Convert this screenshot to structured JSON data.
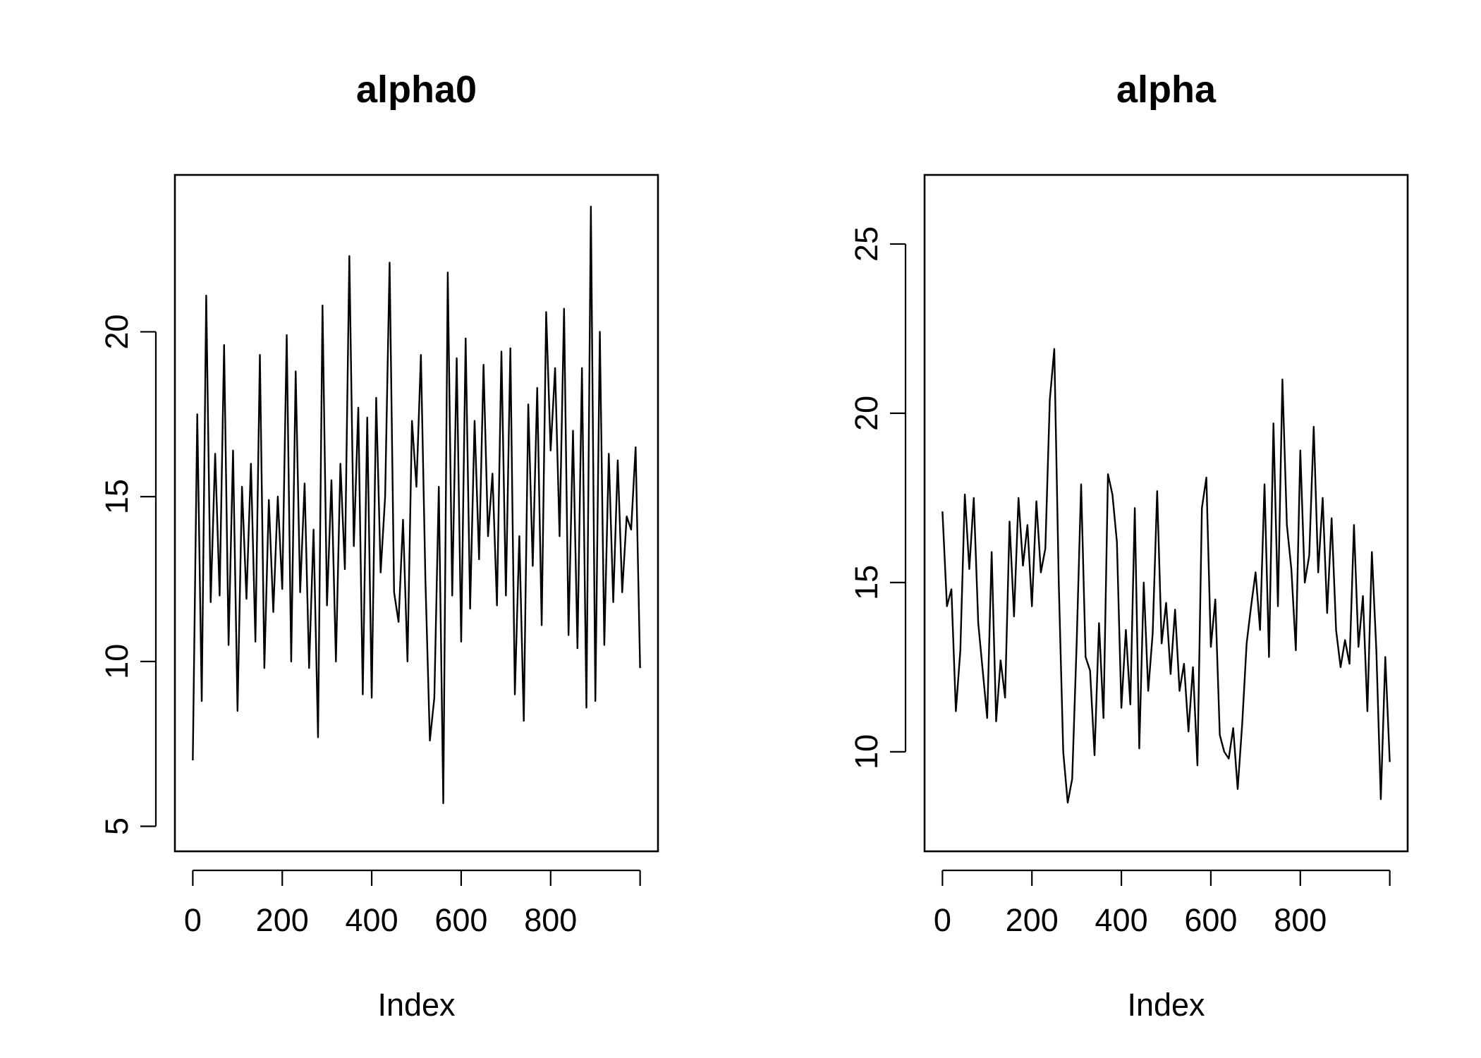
{
  "chart_data": [
    {
      "type": "line",
      "title": "alpha0",
      "xlabel": "Index",
      "ylabel": "",
      "xlim": [
        0,
        1000
      ],
      "ylim": [
        5,
        24
      ],
      "x_ticks": [
        0,
        200,
        400,
        600,
        800,
        1000
      ],
      "x_tick_labels": [
        "0",
        "200",
        "400",
        "600",
        "800",
        ""
      ],
      "y_ticks": [
        5,
        10,
        15,
        20
      ],
      "y_tick_labels": [
        "5",
        "10",
        "15",
        "20"
      ],
      "grid": false,
      "series": [
        {
          "x": [
            0,
            10,
            20,
            30,
            40,
            50,
            60,
            70,
            80,
            90,
            100,
            110,
            120,
            130,
            140,
            150,
            160,
            170,
            180,
            190,
            200,
            210,
            220,
            230,
            240,
            250,
            260,
            270,
            280,
            290,
            300,
            310,
            320,
            330,
            340,
            350,
            360,
            370,
            380,
            390,
            400,
            410,
            420,
            430,
            440,
            450,
            460,
            470,
            480,
            490,
            500,
            510,
            520,
            530,
            540,
            550,
            560,
            570,
            580,
            590,
            600,
            610,
            620,
            630,
            640,
            650,
            660,
            670,
            680,
            690,
            700,
            710,
            720,
            730,
            740,
            750,
            760,
            770,
            780,
            790,
            800,
            810,
            820,
            830,
            840,
            850,
            860,
            870,
            880,
            890,
            900,
            910,
            920,
            930,
            940,
            950,
            960,
            970,
            980,
            990,
            1000
          ],
          "values": [
            7.0,
            17.5,
            8.8,
            21.1,
            11.8,
            16.3,
            12.0,
            19.6,
            10.5,
            16.4,
            8.5,
            15.3,
            11.9,
            16.0,
            10.6,
            19.3,
            9.8,
            14.9,
            11.5,
            15.0,
            12.2,
            19.9,
            10.0,
            18.8,
            12.1,
            15.4,
            9.8,
            14.0,
            7.7,
            20.8,
            11.7,
            15.5,
            10.0,
            16.0,
            12.8,
            22.3,
            13.5,
            17.7,
            9.0,
            17.4,
            8.9,
            18.0,
            12.7,
            15.0,
            22.1,
            12.1,
            11.2,
            14.3,
            10.0,
            17.3,
            15.3,
            19.3,
            12.5,
            7.6,
            8.9,
            15.3,
            5.7,
            21.8,
            12.0,
            19.2,
            10.6,
            19.8,
            11.6,
            17.3,
            13.1,
            19.0,
            13.8,
            15.7,
            11.7,
            19.4,
            12.0,
            19.5,
            9.0,
            13.8,
            8.2,
            17.8,
            12.9,
            18.3,
            11.1,
            20.6,
            16.4,
            18.9,
            13.8,
            20.7,
            10.8,
            17.0,
            10.4,
            18.9,
            8.6,
            23.8,
            8.8,
            20.0,
            10.5,
            16.3,
            11.8,
            16.1,
            12.1,
            14.4,
            14.0,
            16.5,
            9.8
          ]
        }
      ]
    },
    {
      "type": "line",
      "title": "alpha",
      "xlabel": "Index",
      "ylabel": "",
      "xlim": [
        0,
        1000
      ],
      "ylim": [
        7.8,
        26.3
      ],
      "x_ticks": [
        0,
        200,
        400,
        600,
        800,
        1000
      ],
      "x_tick_labels": [
        "0",
        "200",
        "400",
        "600",
        "800",
        ""
      ],
      "y_ticks": [
        10,
        15,
        20,
        25
      ],
      "y_tick_labels": [
        "10",
        "15",
        "20",
        "25"
      ],
      "grid": false,
      "series": [
        {
          "x": [
            0,
            10,
            20,
            30,
            40,
            50,
            60,
            70,
            80,
            90,
            100,
            110,
            120,
            130,
            140,
            150,
            160,
            170,
            180,
            190,
            200,
            210,
            220,
            230,
            240,
            250,
            260,
            270,
            280,
            290,
            300,
            310,
            320,
            330,
            340,
            350,
            360,
            370,
            380,
            390,
            400,
            410,
            420,
            430,
            440,
            450,
            460,
            470,
            480,
            490,
            500,
            510,
            520,
            530,
            540,
            550,
            560,
            570,
            580,
            590,
            600,
            610,
            620,
            630,
            640,
            650,
            660,
            670,
            680,
            690,
            700,
            710,
            720,
            730,
            740,
            750,
            760,
            770,
            780,
            790,
            800,
            810,
            820,
            830,
            840,
            850,
            860,
            870,
            880,
            890,
            900,
            910,
            920,
            930,
            940,
            950,
            960,
            970,
            980,
            990,
            1000
          ],
          "values": [
            17.1,
            14.3,
            14.8,
            11.2,
            13.0,
            17.6,
            15.4,
            17.5,
            13.8,
            12.4,
            11.0,
            15.9,
            10.9,
            12.7,
            11.6,
            16.8,
            14.0,
            17.5,
            15.5,
            16.7,
            14.3,
            17.4,
            15.3,
            16.0,
            20.4,
            21.9,
            15.0,
            10.0,
            8.5,
            9.2,
            13.2,
            17.9,
            12.8,
            12.4,
            9.9,
            13.8,
            11.0,
            18.2,
            17.6,
            16.2,
            11.3,
            13.6,
            11.4,
            17.2,
            10.1,
            15.0,
            11.8,
            13.5,
            17.7,
            13.2,
            14.4,
            12.3,
            14.2,
            11.8,
            12.6,
            10.6,
            12.5,
            9.6,
            17.2,
            18.1,
            13.1,
            14.5,
            10.5,
            10.0,
            9.8,
            10.7,
            8.9,
            10.8,
            13.2,
            14.3,
            15.3,
            13.6,
            17.9,
            12.8,
            19.7,
            14.3,
            21.0,
            16.7,
            15.4,
            13.0,
            18.9,
            15.0,
            15.8,
            19.6,
            15.3,
            17.5,
            14.1,
            16.9,
            13.6,
            12.5,
            13.3,
            12.6,
            16.7,
            13.1,
            14.6,
            11.2,
            15.9,
            13.0,
            8.6,
            12.8,
            9.7
          ]
        }
      ]
    }
  ]
}
